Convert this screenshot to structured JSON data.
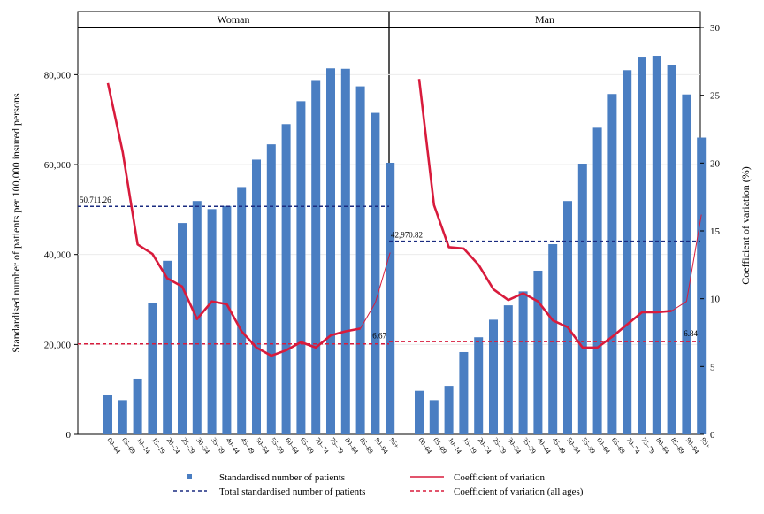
{
  "chart_data": {
    "type": "bar",
    "ylabel": "Standardised number of patients per 100,000 insured persons",
    "y2label": "Coefficient of variation (%)",
    "ylim": [
      0,
      90500
    ],
    "y2lim": [
      0,
      30
    ],
    "yticks": [
      "0",
      "20,000",
      "40,000",
      "60,000",
      "80,000"
    ],
    "y2ticks": [
      "0",
      "5",
      "10",
      "15",
      "20",
      "25",
      "30"
    ],
    "categories": [
      "00–04",
      "05–09",
      "10–14",
      "15–19",
      "20–24",
      "25–29",
      "30–34",
      "35–39",
      "40–44",
      "45–49",
      "50–54",
      "55–59",
      "60–64",
      "65–69",
      "70–74",
      "75–79",
      "80–84",
      "85–89",
      "90–94",
      "95+"
    ],
    "panels": [
      {
        "title": "Woman",
        "values": [
          8700,
          7600,
          12400,
          29300,
          38600,
          47000,
          51900,
          50100,
          50800,
          55000,
          61100,
          64500,
          69000,
          74100,
          78800,
          81400,
          81300,
          77400,
          71500,
          60400
        ],
        "cv": [
          25.9,
          20.8,
          14.0,
          13.3,
          11.5,
          10.9,
          8.5,
          9.8,
          9.6,
          7.6,
          6.4,
          5.8,
          6.2,
          6.8,
          6.4,
          7.3,
          7.6,
          7.8,
          9.7,
          13.4
        ],
        "total": 50711.26,
        "total_label": "50,711.26",
        "cv_all": 6.67,
        "cv_all_label": "6.67"
      },
      {
        "title": "Man",
        "values": [
          9700,
          7600,
          10800,
          18300,
          21600,
          25500,
          28700,
          31800,
          36400,
          42300,
          51900,
          60200,
          68200,
          75700,
          81000,
          84000,
          84200,
          82200,
          75600,
          66000
        ],
        "cv": [
          26.2,
          16.9,
          13.8,
          13.7,
          12.5,
          10.7,
          9.9,
          10.4,
          9.8,
          8.4,
          7.9,
          6.4,
          6.4,
          7.2,
          8.1,
          9.0,
          9.0,
          9.1,
          9.8,
          16.2
        ],
        "total": 42970.82,
        "total_label": "42,970.82",
        "cv_all": 6.84,
        "cv_all_label": "6.84"
      }
    ],
    "legend": [
      {
        "label": "Standardised number of patients",
        "kind": "bar-marker"
      },
      {
        "label": "Coefficient of variation",
        "kind": "solid-line"
      },
      {
        "label": "Total standardised number of patients",
        "kind": "dashed-navy"
      },
      {
        "label": "Coefficient of variation (all ages)",
        "kind": "dashed-red"
      }
    ],
    "colors": {
      "bar": "#4a7ec2",
      "cv": "#d81b3c",
      "total": "#1a2b80",
      "cv_all": "#d81b3c"
    },
    "legend_position": "bottom",
    "grid": true
  }
}
